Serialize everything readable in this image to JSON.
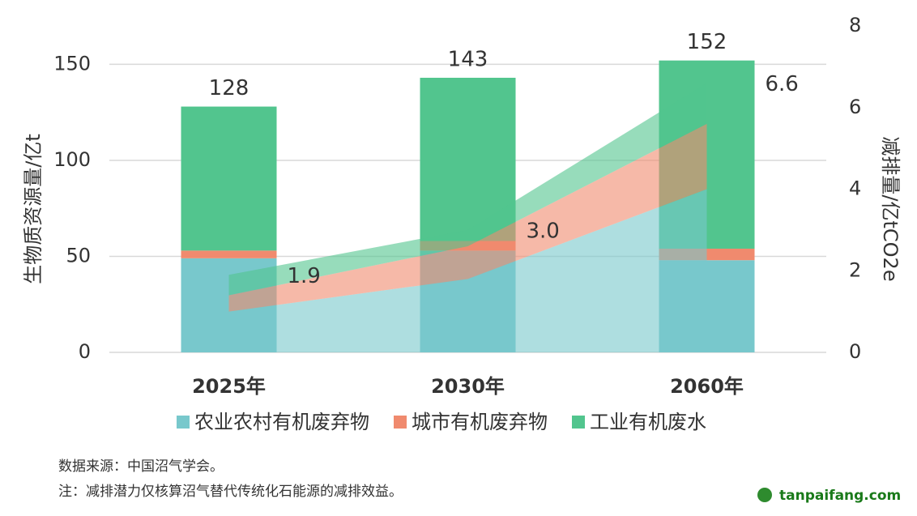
{
  "chart_data": {
    "type": "bar",
    "categories": [
      "2025年",
      "2030年",
      "2060年"
    ],
    "series": [
      {
        "name": "农业农村有机废弃物",
        "color": "#78c8cc",
        "values": [
          49,
          53,
          48
        ],
        "y2_values": [
          1.0,
          1.8,
          4.0
        ]
      },
      {
        "name": "城市有机废弃物",
        "color": "#f08a6e",
        "values": [
          4,
          5,
          6
        ],
        "y2_values": [
          0.4,
          0.8,
          1.6
        ]
      },
      {
        "name": "工业有机废水",
        "color": "#52c58e",
        "values": [
          75,
          85,
          98
        ],
        "y2_values": [
          0.5,
          0.4,
          1.0
        ]
      }
    ],
    "bar_totals": [
      128,
      143,
      152
    ],
    "y2_totals": {
      "values": [
        1.9,
        3.0,
        6.6
      ],
      "value_labels": [
        "1.9",
        "3.0",
        "6.6"
      ]
    },
    "ylabel": "生物质资源量/亿t",
    "y2label": "减排量/亿tCO2e",
    "ylim": [
      0,
      170
    ],
    "yticks": [
      0,
      50,
      100,
      150
    ],
    "y2lim": [
      0,
      8
    ],
    "y2ticks": [
      0,
      2,
      4,
      6,
      8
    ],
    "grid": true,
    "notes": [
      "数据来源：中国沼气学会。",
      "注：减排潜力仅核算沼气替代传统化石能源的减排效益。"
    ],
    "logo": "tanpaifang.com"
  }
}
